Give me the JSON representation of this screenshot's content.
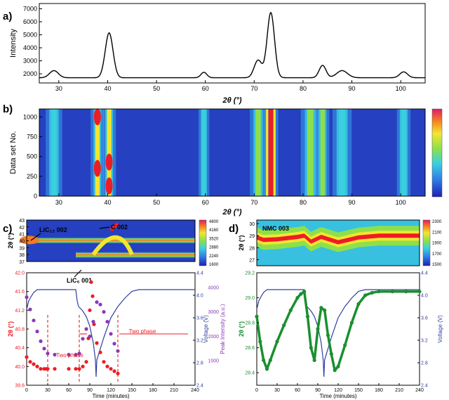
{
  "panels": {
    "a": "a)",
    "b": "b)",
    "c": "c)",
    "d": "d)"
  },
  "chart_data": [
    {
      "panel": "a",
      "type": "line",
      "ylabel": "Intensity",
      "xlabel": "2θ (°)",
      "xlim": [
        26,
        105
      ],
      "ylim": [
        1300,
        7400
      ],
      "xticks": [
        30,
        40,
        50,
        60,
        70,
        80,
        90,
        100
      ],
      "yticks": [
        2000,
        3000,
        4000,
        5000,
        6000,
        7000
      ],
      "baseline": 1700,
      "peaks": [
        {
          "x": 29.0,
          "height": 550,
          "width": 0.9
        },
        {
          "x": 40.3,
          "height": 3450,
          "width": 0.8
        },
        {
          "x": 59.7,
          "height": 420,
          "width": 0.6
        },
        {
          "x": 70.8,
          "height": 1350,
          "width": 0.8
        },
        {
          "x": 73.4,
          "height": 5000,
          "width": 0.75
        },
        {
          "x": 84.0,
          "height": 950,
          "width": 0.7
        },
        {
          "x": 88.0,
          "height": 550,
          "width": 1.1
        },
        {
          "x": 100.6,
          "height": 450,
          "width": 0.8
        }
      ]
    },
    {
      "panel": "b",
      "type": "heatmap",
      "ylabel": "Data set No.",
      "xlabel": "2θ (°)",
      "xlim": [
        26,
        105
      ],
      "ylim": [
        0,
        1100
      ],
      "xticks": [
        30,
        40,
        50,
        60,
        70,
        80,
        90,
        100
      ],
      "yticks": [
        0,
        250,
        500,
        750,
        1000
      ],
      "colorbar": "blue-green-yellow-red",
      "bands": [
        {
          "x": 29.0,
          "width": 0.6,
          "level": 0.45
        },
        {
          "x": 37.9,
          "width": 0.5,
          "level": 0.75
        },
        {
          "x": 40.3,
          "width": 0.5,
          "level": 0.8
        },
        {
          "x": 59.7,
          "width": 0.4,
          "level": 0.4
        },
        {
          "x": 70.8,
          "width": 0.6,
          "level": 0.55
        },
        {
          "x": 73.4,
          "width": 0.55,
          "level": 1.0
        },
        {
          "x": 81.5,
          "width": 0.7,
          "level": 0.55
        },
        {
          "x": 84.0,
          "width": 0.5,
          "level": 0.5
        },
        {
          "x": 88.0,
          "width": 0.7,
          "level": 0.35
        },
        {
          "x": 100.6,
          "width": 0.5,
          "level": 0.45
        }
      ]
    },
    {
      "panel": "c-top",
      "type": "heatmap",
      "ylabel": "2θ (°)",
      "ylim": [
        37,
        43
      ],
      "yticks": [
        37,
        38,
        39,
        40,
        41,
        42,
        43
      ],
      "colorbar_ticks": [
        "4800",
        "4160",
        "3520",
        "2880",
        "2240",
        "1600"
      ],
      "annotations": [
        "LiC₁₂ 002",
        "C 002",
        "LiC₆ 001"
      ]
    },
    {
      "panel": "c-bottom",
      "type": "line",
      "xlabel": "Time (minutes)",
      "ylabel": "2θ (°)",
      "ylabel_right_inner": "Voltage (V)",
      "ylabel_right_outer": "Peak Intensity (a.u.)",
      "xlim": [
        0,
        240
      ],
      "xticks": [
        0,
        30,
        60,
        90,
        120,
        150,
        180,
        210,
        240
      ],
      "ylim": [
        39.6,
        42.0
      ],
      "yticks": [
        "39.6",
        "40.0",
        "40.4",
        "40.8",
        "41.2",
        "41.6",
        "42.0"
      ],
      "voltage_ticks": [
        "2.4",
        "2.8",
        "3.2",
        "3.6",
        "4.0",
        "4.4"
      ],
      "intensity_ticks": [
        "1000",
        "2000",
        "3000",
        "4000"
      ],
      "annotations": [
        "Two phase",
        "Two phase"
      ],
      "series": [
        {
          "name": "2θ",
          "color": "#ee1c24",
          "x": [
            0,
            5,
            10,
            15,
            20,
            25,
            28,
            30,
            40,
            60,
            70,
            75,
            80,
            85,
            88,
            90,
            92,
            94,
            96,
            100,
            105,
            110,
            115,
            120,
            125,
            130
          ],
          "y": [
            40.2,
            40.1,
            40.05,
            40.0,
            39.95,
            39.95,
            39.95,
            39.95,
            39.95,
            39.95,
            39.95,
            39.95,
            40.0,
            40.1,
            40.6,
            41.2,
            41.8,
            41.5,
            40.9,
            40.5,
            40.3,
            40.1,
            40.0,
            39.95,
            39.9,
            39.85
          ]
        },
        {
          "name": "Peak Intensity",
          "color": "#8a3ab9",
          "x": [
            0,
            5,
            10,
            15,
            20,
            25,
            30,
            40,
            60,
            70,
            75,
            80,
            85,
            90,
            95,
            100,
            105,
            110,
            115,
            120,
            125,
            130
          ],
          "y": [
            3600,
            3100,
            2650,
            2200,
            1800,
            1500,
            1300,
            1250,
            1250,
            1250,
            1300,
            1900,
            2300,
            2000,
            2600,
            3400,
            3300,
            3000,
            2600,
            2100,
            1700,
            1400
          ]
        },
        {
          "name": "Voltage",
          "color": "#3040a0",
          "x": [
            0,
            3,
            6,
            10,
            15,
            20,
            25,
            30,
            35,
            40,
            50,
            60,
            70,
            72,
            74,
            80,
            85,
            90,
            95,
            98,
            99,
            100,
            110,
            120,
            130,
            140,
            150,
            160,
            240
          ],
          "y": [
            3.75,
            3.9,
            3.97,
            4.05,
            4.1,
            4.1,
            4.1,
            4.1,
            4.1,
            4.1,
            4.1,
            4.1,
            4.1,
            3.9,
            3.8,
            3.72,
            3.62,
            3.45,
            3.15,
            2.85,
            2.55,
            2.85,
            3.25,
            3.6,
            3.8,
            3.95,
            4.07,
            4.1,
            4.1
          ]
        }
      ]
    },
    {
      "panel": "d-top",
      "type": "heatmap",
      "ylabel": "2θ (°)",
      "ylim": [
        26.5,
        30.3
      ],
      "yticks": [
        27,
        28,
        29,
        30
      ],
      "colorbar_ticks": [
        "2300",
        "2100",
        "1900",
        "1700",
        "1500"
      ],
      "annotations": [
        "NMC 003"
      ]
    },
    {
      "panel": "d-bottom",
      "type": "line",
      "xlabel": "Time (minutes)",
      "ylabel": "2θ (°)",
      "ylabel_right": "Voltage (V)",
      "xlim": [
        0,
        240
      ],
      "xticks": [
        0,
        30,
        60,
        90,
        120,
        150,
        180,
        210,
        240
      ],
      "ylim": [
        28.3,
        29.2
      ],
      "yticks": [
        "28.4",
        "28.6",
        "28.8",
        "29.0",
        "29.2"
      ],
      "voltage_ticks": [
        "2.4",
        "2.8",
        "3.2",
        "3.6",
        "4.0",
        "4.4"
      ],
      "series": [
        {
          "name": "2θ",
          "color": "#1a8f2e",
          "x": [
            0,
            5,
            10,
            15,
            20,
            30,
            40,
            50,
            60,
            65,
            70,
            75,
            80,
            85,
            90,
            95,
            100,
            105,
            110,
            115,
            120,
            130,
            140,
            150,
            160,
            170,
            180,
            200,
            220,
            240
          ],
          "y": [
            28.85,
            28.65,
            28.5,
            28.43,
            28.5,
            28.65,
            28.78,
            28.9,
            29.0,
            29.03,
            29.05,
            28.85,
            28.6,
            28.5,
            28.75,
            28.92,
            28.9,
            28.7,
            28.55,
            28.42,
            28.45,
            28.62,
            28.8,
            28.95,
            29.02,
            29.04,
            29.05,
            29.05,
            29.05,
            29.05
          ]
        },
        {
          "name": "Voltage",
          "color": "#3040a0",
          "x": [
            0,
            3,
            6,
            10,
            15,
            20,
            25,
            30,
            35,
            40,
            50,
            60,
            70,
            72,
            74,
            80,
            85,
            90,
            95,
            98,
            99,
            100,
            110,
            120,
            130,
            140,
            150,
            160,
            240
          ],
          "y": [
            3.75,
            3.9,
            3.97,
            4.05,
            4.1,
            4.1,
            4.1,
            4.1,
            4.1,
            4.1,
            4.1,
            4.1,
            4.1,
            3.9,
            3.8,
            3.72,
            3.62,
            3.45,
            3.15,
            2.85,
            2.55,
            2.85,
            3.25,
            3.6,
            3.8,
            3.95,
            4.07,
            4.1,
            4.1
          ]
        }
      ]
    }
  ]
}
